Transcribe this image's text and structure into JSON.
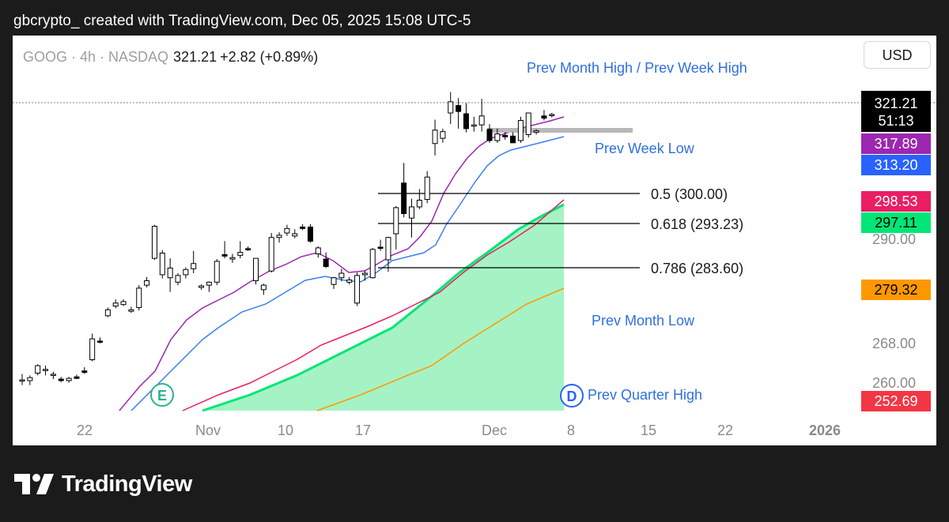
{
  "header": {
    "text": "gbcrypto_ created with TradingView.com, Dec 05, 2025 15:08 UTC-5"
  },
  "symbol_bar": {
    "symbol": "GOOG · 4h · NASDAQ",
    "price": "321.21",
    "change": "+2.82 (+0.89%)"
  },
  "currency_button": "USD",
  "footer": {
    "brand": "TradingView"
  },
  "chart_data": {
    "type": "candlestick",
    "title": "GOOG · 4h · NASDAQ",
    "y_axis_ticks": [
      "290.00",
      "268.00",
      "260.00"
    ],
    "x_axis_ticks": [
      "22",
      "Nov",
      "10",
      "17",
      "Dec",
      "8",
      "15",
      "22",
      "2026"
    ],
    "price_labels": [
      {
        "value": "321.21",
        "sub": "51:13",
        "color": "#000000"
      },
      {
        "value": "317.89",
        "color": "#9c27b0"
      },
      {
        "value": "313.20",
        "color": "#2962ff"
      },
      {
        "value": "298.53",
        "color": "#e91e63"
      },
      {
        "value": "297.11",
        "color": "#00e676"
      },
      {
        "value": "279.32",
        "color": "#ff9800"
      },
      {
        "value": "252.69",
        "color": "#f23645"
      }
    ],
    "fibonacci_levels": [
      {
        "label": "0.5 (300.00)",
        "price": 300.0
      },
      {
        "label": "0.618 (293.23)",
        "price": 293.23
      },
      {
        "label": "0.786 (283.60)",
        "price": 283.6
      }
    ],
    "annotations": [
      "Prev Month High / Prev Week High",
      "Prev Week Low",
      "Prev Month Low",
      "Prev Quarter High"
    ],
    "markers": [
      "E",
      "D"
    ],
    "last_price": 321.21,
    "candles": [
      [
        249.8,
        251.6,
        248.6,
        250.0
      ],
      [
        249.8,
        251.2,
        248.6,
        250.6
      ],
      [
        251.8,
        254.2,
        251.2,
        253.8
      ],
      [
        252.8,
        253.8,
        251.2,
        252.8
      ],
      [
        251.2,
        252.2,
        250.2,
        251.5
      ],
      [
        250.2,
        250.8,
        249.4,
        249.8
      ],
      [
        249.8,
        250.8,
        249.2,
        250.4
      ],
      [
        250.8,
        251.4,
        250.2,
        250.4
      ],
      [
        252.4,
        253.4,
        251.6,
        252.0
      ],
      [
        255.4,
        262.4,
        255.0,
        261.0
      ],
      [
        260.4,
        261.4,
        259.8,
        260.2
      ],
      [
        267.2,
        269.4,
        266.8,
        268.8
      ],
      [
        269.8,
        271.6,
        269.2,
        270.6
      ],
      [
        270.2,
        271.6,
        269.8,
        271.0
      ],
      [
        268.4,
        269.6,
        268.0,
        268.8
      ],
      [
        269.4,
        275.4,
        268.6,
        274.6
      ],
      [
        275.4,
        277.6,
        274.8,
        276.6
      ],
      [
        282.6,
        291.6,
        282.2,
        291.2
      ],
      [
        278.2,
        284.8,
        277.2,
        284.0
      ],
      [
        277.4,
        282.6,
        273.6,
        280.0
      ],
      [
        276.2,
        278.6,
        275.4,
        278.0
      ],
      [
        278.2,
        280.2,
        277.2,
        279.6
      ],
      [
        279.8,
        284.6,
        278.6,
        281.2
      ],
      [
        274.8,
        275.6,
        274.2,
        275.2
      ],
      [
        275.4,
        276.4,
        273.6,
        276.2
      ],
      [
        276.2,
        282.4,
        275.4,
        281.8
      ],
      [
        283.6,
        287.2,
        282.6,
        283.2
      ],
      [
        282.4,
        283.8,
        281.4,
        282.8
      ],
      [
        283.4,
        287.2,
        282.6,
        284.2
      ],
      [
        285.2,
        285.8,
        284.6,
        285.0
      ],
      [
        276.6,
        282.6,
        275.6,
        282.6
      ],
      [
        274.2,
        275.8,
        272.8,
        275.4
      ],
      [
        279.2,
        289.4,
        278.8,
        288.2
      ],
      [
        288.2,
        289.6,
        286.8,
        288.8
      ],
      [
        289.4,
        291.6,
        288.6,
        290.6
      ],
      [
        288.6,
        290.4,
        288.0,
        289.2
      ],
      [
        291.0,
        291.8,
        290.2,
        290.6
      ],
      [
        291.0,
        291.8,
        286.8,
        287.2
      ],
      [
        283.8,
        285.8,
        282.8,
        285.4
      ],
      [
        282.4,
        284.2,
        280.0,
        280.4
      ],
      [
        275.6,
        277.6,
        274.4,
        277.4
      ],
      [
        277.4,
        279.8,
        276.4,
        278.6
      ],
      [
        276.2,
        277.6,
        275.6,
        276.8
      ],
      [
        270.6,
        278.8,
        269.8,
        278.0
      ],
      [
        278.2,
        279.2,
        276.6,
        278.6
      ],
      [
        277.4,
        285.4,
        277.2,
        285.0
      ],
      [
        285.6,
        287.6,
        284.6,
        285.4
      ],
      [
        282.2,
        288.4,
        279.0,
        288.2
      ],
      [
        289.2,
        296.6,
        285.0,
        296.2
      ],
      [
        302.8,
        308.2,
        293.6,
        294.6
      ],
      [
        293.4,
        298.6,
        288.2,
        296.4
      ],
      [
        296.4,
        301.2,
        295.8,
        298.2
      ],
      [
        298.4,
        306.0,
        297.4,
        304.4
      ],
      [
        313.4,
        319.8,
        310.2,
        317.0
      ],
      [
        314.8,
        317.4,
        313.6,
        316.6
      ],
      [
        321.6,
        327.2,
        318.6,
        324.6
      ],
      [
        323.6,
        325.6,
        317.4,
        322.0
      ],
      [
        321.4,
        324.2,
        316.4,
        317.4
      ],
      [
        318.2,
        320.6,
        316.6,
        318.4
      ],
      [
        318.4,
        325.4,
        316.6,
        320.8
      ],
      [
        317.2,
        318.6,
        313.6,
        314.2
      ],
      [
        314.2,
        317.4,
        313.6,
        316.0
      ],
      [
        315.6,
        316.4,
        314.4,
        315.2
      ],
      [
        315.4,
        316.4,
        313.6,
        313.6
      ],
      [
        314.2,
        320.6,
        313.6,
        319.6
      ],
      [
        315.8,
        321.6,
        315.0,
        321.6
      ],
      [
        316.4,
        317.2,
        315.8,
        316.8
      ],
      [
        320.8,
        322.4,
        319.6,
        320.2
      ],
      [
        320.9,
        321.6,
        320.4,
        321.2
      ]
    ]
  }
}
